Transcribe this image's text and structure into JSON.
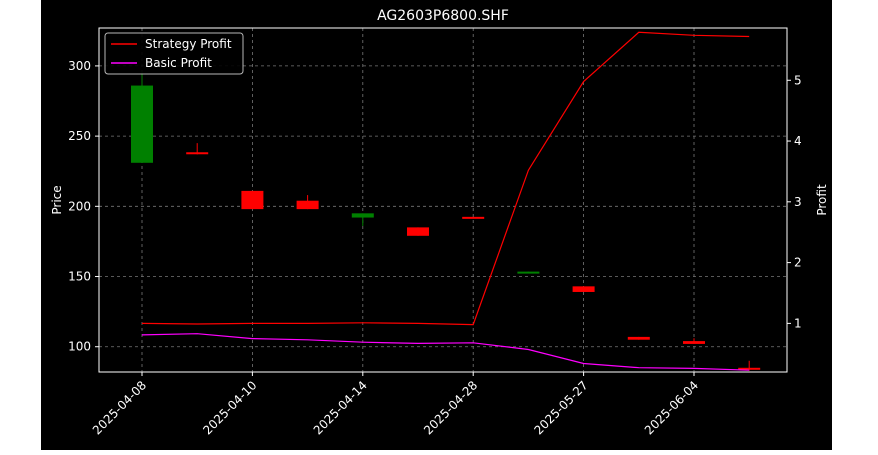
{
  "chart_data": {
    "type": "candlestick",
    "title": "AG2603P6800.SHF",
    "xlabel": "",
    "ylabel_left": "Price",
    "ylabel_right": "Profit",
    "categories": [
      "2025-04-08",
      "",
      "2025-04-10",
      "",
      "2025-04-14",
      "",
      "2025-04-28",
      "",
      "2025-05-27",
      "",
      "2025-06-04",
      ""
    ],
    "x_tick_labels": [
      "2025-04-08",
      "2025-04-10",
      "2025-04-14",
      "2025-04-28",
      "2025-05-27",
      "2025-06-04"
    ],
    "ylim_left": [
      82,
      327
    ],
    "yticks_left": [
      100,
      150,
      200,
      250,
      300
    ],
    "ylim_right": [
      0.2,
      5.86
    ],
    "yticks_right": [
      1,
      2,
      3,
      4,
      5
    ],
    "grid": true,
    "background": "#000000",
    "legend": {
      "position": "top-left",
      "entries": [
        "Strategy Profit",
        "Basic Profit"
      ]
    },
    "candles": [
      {
        "open": 231,
        "close": 286,
        "high": 296,
        "low": 231,
        "color": "#008000"
      },
      {
        "open": 238.5,
        "close": 237.5,
        "high": 245,
        "low": 237,
        "color": "#ff0000"
      },
      {
        "open": 211,
        "close": 198,
        "high": 211,
        "low": 198,
        "color": "#ff0000"
      },
      {
        "open": 204,
        "close": 198,
        "high": 208,
        "low": 198,
        "color": "#ff0000"
      },
      {
        "open": 192,
        "close": 195,
        "high": 195,
        "low": 186,
        "color": "#008000"
      },
      {
        "open": 185,
        "close": 179,
        "high": 185,
        "low": 179,
        "color": "#ff0000"
      },
      {
        "open": 192.5,
        "close": 191.5,
        "high": 192.5,
        "low": 191.5,
        "color": "#ff0000"
      },
      {
        "open": 152.5,
        "close": 153.5,
        "high": 153.5,
        "low": 152.5,
        "color": "#008000"
      },
      {
        "open": 143,
        "close": 139,
        "high": 143,
        "low": 139,
        "color": "#ff0000"
      },
      {
        "open": 107,
        "close": 105,
        "high": 107,
        "low": 105,
        "color": "#ff0000"
      },
      {
        "open": 104,
        "close": 102,
        "high": 106,
        "low": 102,
        "color": "#ff0000"
      },
      {
        "open": 85,
        "close": 84,
        "high": 90,
        "low": 83,
        "color": "#ff0000"
      }
    ],
    "series": [
      {
        "name": "Strategy Profit",
        "color": "#ff0000",
        "values": [
          1.0,
          0.99,
          1.0,
          1.0,
          1.01,
          1.0,
          0.98,
          3.52,
          4.98,
          5.79,
          5.74,
          5.72
        ]
      },
      {
        "name": "Basic Profit",
        "color": "#ff00ff",
        "values": [
          0.81,
          0.83,
          0.75,
          0.73,
          0.69,
          0.67,
          0.68,
          0.57,
          0.34,
          0.27,
          0.26,
          0.23
        ]
      }
    ]
  }
}
